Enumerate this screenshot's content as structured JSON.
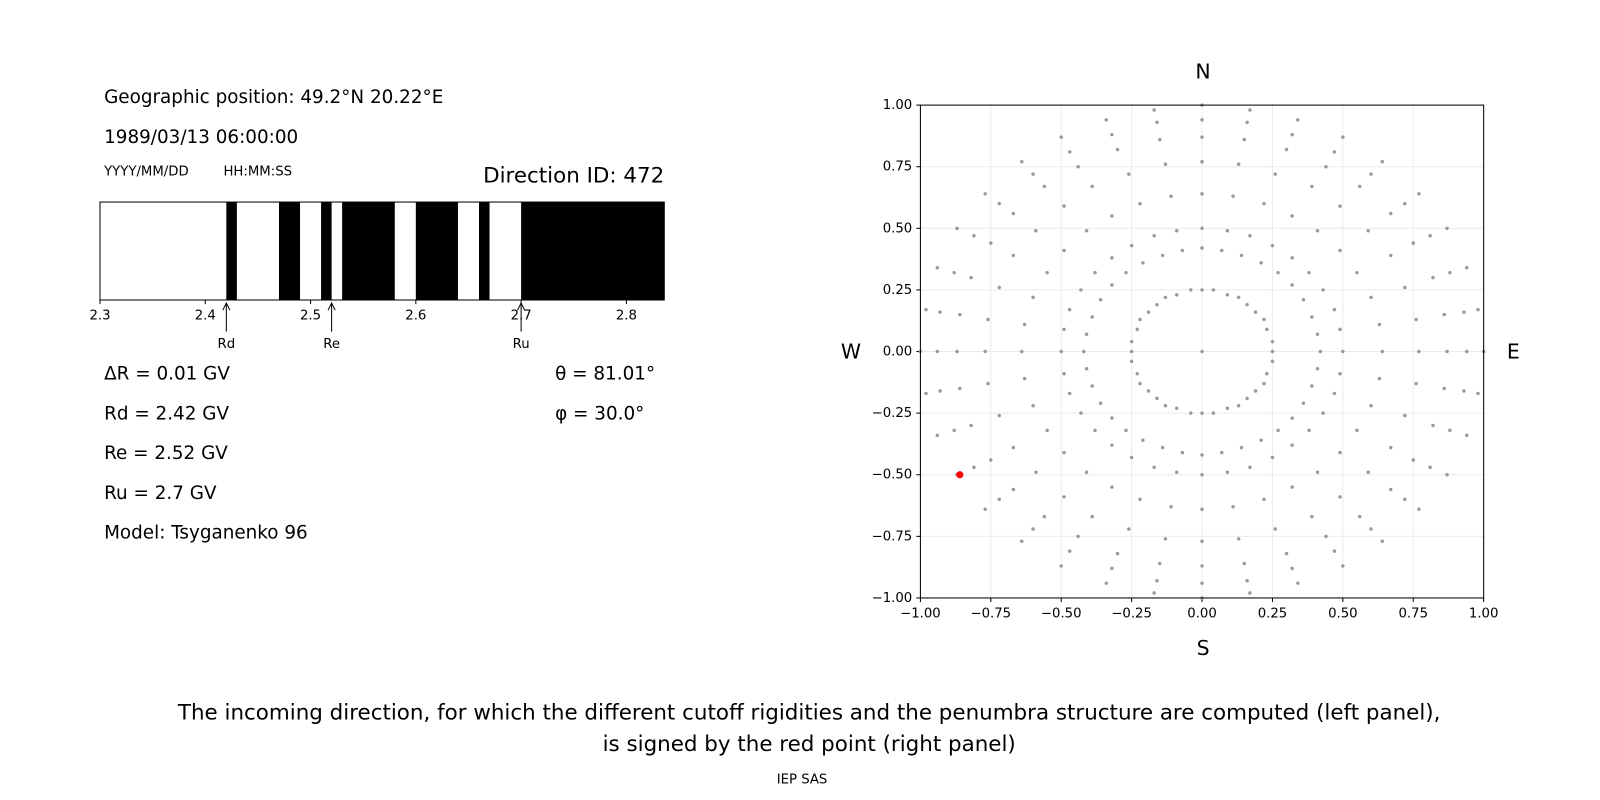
{
  "info": {
    "position": "Geographic position: 49.2°N 20.22°E",
    "datetime": "1989/03/13 06:00:00",
    "date_format": "YYYY/MM/DD",
    "time_format": "HH:MM:SS",
    "direction": "Direction ID: 472",
    "delta_r": "ΔR = 0.01 GV",
    "rd": "Rd = 2.42 GV",
    "re": "Re = 2.52 GV",
    "ru": "Ru = 2.7 GV",
    "model": "Model: Tsyganenko 96",
    "theta": "θ = 81.01°",
    "phi": "φ = 30.0°"
  },
  "chart_data": [
    {
      "type": "penumbra",
      "xlim": [
        2.3,
        2.836
      ],
      "xticks": [
        2.3,
        2.4,
        2.5,
        2.6,
        2.7,
        2.8
      ],
      "color": "#000000",
      "forbidden": [
        [
          2.42,
          2.43
        ],
        [
          2.47,
          2.49
        ],
        [
          2.51,
          2.52
        ],
        [
          2.53,
          2.58
        ],
        [
          2.6,
          2.64
        ],
        [
          2.66,
          2.67
        ],
        [
          2.7,
          2.836
        ]
      ],
      "markers": [
        {
          "label": "Rd",
          "value": 2.42
        },
        {
          "label": "Re",
          "value": 2.52
        },
        {
          "label": "Ru",
          "value": 2.7
        }
      ]
    },
    {
      "type": "scatter",
      "grid": true,
      "compass": {
        "north": "N",
        "south": "S",
        "west": "W",
        "east": "E"
      },
      "xlim": [
        -1,
        1
      ],
      "ylim": [
        -1,
        1
      ],
      "xticks": [
        {
          "value": -1,
          "label": "−1.00"
        },
        {
          "value": -0.75,
          "label": "−0.75"
        },
        {
          "value": -0.5,
          "label": "−0.50"
        },
        {
          "value": -0.25,
          "label": "−0.25"
        },
        {
          "value": 0,
          "label": "0.00"
        },
        {
          "value": 0.25,
          "label": "0.25"
        },
        {
          "value": 0.5,
          "label": "0.50"
        },
        {
          "value": 0.75,
          "label": "0.75"
        },
        {
          "value": 1,
          "label": "1.00"
        }
      ],
      "yticks": [
        {
          "value": -1,
          "label": "−1.00"
        },
        {
          "value": -0.75,
          "label": "−0.75"
        },
        {
          "value": -0.5,
          "label": "−0.50"
        },
        {
          "value": -0.25,
          "label": "−0.25"
        },
        {
          "value": 0,
          "label": "0.00"
        },
        {
          "value": 0.25,
          "label": "0.25"
        },
        {
          "value": 0.5,
          "label": "0.50"
        },
        {
          "value": 0.75,
          "label": "0.75"
        },
        {
          "value": 1,
          "label": "1.00"
        }
      ],
      "series": [
        {
          "color": "#999999",
          "x": [
            0
          ],
          "y": [
            0
          ]
        },
        {
          "color": "#999999",
          "x": [
            0.25,
            0.25,
            0.23,
            0.22,
            0.19,
            0.16,
            0.13,
            0.09,
            0.04,
            0,
            -0.04,
            -0.09,
            -0.13,
            -0.16,
            -0.19,
            -0.22,
            -0.23,
            -0.25,
            -0.25,
            -0.25,
            -0.23,
            -0.22,
            -0.19,
            -0.16,
            -0.13,
            -0.09,
            -0.04,
            0,
            0.04,
            0.09,
            0.13,
            0.16,
            0.19,
            0.22,
            0.23,
            0.25
          ],
          "y": [
            0,
            0.04,
            0.09,
            0.13,
            0.16,
            0.19,
            0.22,
            0.23,
            0.25,
            0.25,
            0.25,
            0.23,
            0.22,
            0.19,
            0.16,
            0.13,
            0.09,
            0.04,
            0,
            -0.04,
            -0.09,
            -0.13,
            -0.16,
            -0.19,
            -0.22,
            -0.23,
            -0.25,
            -0.25,
            -0.25,
            -0.23,
            -0.22,
            -0.19,
            -0.16,
            -0.13,
            -0.09,
            -0.04
          ]
        },
        {
          "color": "#999999",
          "x": [
            0.42,
            0.41,
            0.39,
            0.36,
            0.32,
            0.27,
            0.21,
            0.14,
            0.07,
            0,
            -0.07,
            -0.14,
            -0.21,
            -0.27,
            -0.32,
            -0.36,
            -0.39,
            -0.41,
            -0.42,
            -0.41,
            -0.39,
            -0.36,
            -0.32,
            -0.27,
            -0.21,
            -0.14,
            -0.07,
            0,
            0.07,
            0.14,
            0.21,
            0.27,
            0.32,
            0.36,
            0.39,
            0.41
          ],
          "y": [
            0,
            0.07,
            0.14,
            0.21,
            0.27,
            0.32,
            0.36,
            0.39,
            0.41,
            0.42,
            0.41,
            0.39,
            0.36,
            0.32,
            0.27,
            0.21,
            0.14,
            0.07,
            0,
            -0.07,
            -0.14,
            -0.21,
            -0.27,
            -0.32,
            -0.36,
            -0.39,
            -0.41,
            -0.42,
            -0.41,
            -0.39,
            -0.36,
            -0.32,
            -0.27,
            -0.21,
            -0.14,
            -0.07
          ]
        },
        {
          "color": "#999999",
          "x": [
            0.5,
            0.49,
            0.47,
            0.43,
            0.38,
            0.32,
            0.25,
            0.17,
            0.09,
            0,
            -0.09,
            -0.17,
            -0.25,
            -0.32,
            -0.38,
            -0.43,
            -0.47,
            -0.49,
            -0.5,
            -0.49,
            -0.47,
            -0.43,
            -0.38,
            -0.32,
            -0.25,
            -0.17,
            -0.09,
            0,
            0.09,
            0.17,
            0.25,
            0.32,
            0.38,
            0.43,
            0.47,
            0.49
          ],
          "y": [
            0,
            0.09,
            0.17,
            0.25,
            0.32,
            0.38,
            0.43,
            0.47,
            0.49,
            0.5,
            0.49,
            0.47,
            0.43,
            0.38,
            0.32,
            0.25,
            0.17,
            0.09,
            0,
            -0.09,
            -0.17,
            -0.25,
            -0.32,
            -0.38,
            -0.43,
            -0.47,
            -0.49,
            -0.5,
            -0.49,
            -0.47,
            -0.43,
            -0.38,
            -0.32,
            -0.25,
            -0.17,
            -0.09
          ]
        },
        {
          "color": "#999999",
          "x": [
            0.64,
            0.63,
            0.6,
            0.55,
            0.49,
            0.41,
            0.32,
            0.22,
            0.11,
            0,
            -0.11,
            -0.22,
            -0.32,
            -0.41,
            -0.49,
            -0.55,
            -0.6,
            -0.63,
            -0.64,
            -0.63,
            -0.6,
            -0.55,
            -0.49,
            -0.41,
            -0.32,
            -0.22,
            -0.11,
            0,
            0.11,
            0.22,
            0.32,
            0.41,
            0.49,
            0.55,
            0.6,
            0.63
          ],
          "y": [
            0,
            0.11,
            0.22,
            0.32,
            0.41,
            0.49,
            0.55,
            0.6,
            0.63,
            0.64,
            0.63,
            0.6,
            0.55,
            0.49,
            0.41,
            0.32,
            0.22,
            0.11,
            0,
            -0.11,
            -0.22,
            -0.32,
            -0.41,
            -0.49,
            -0.55,
            -0.6,
            -0.63,
            -0.64,
            -0.63,
            -0.6,
            -0.55,
            -0.49,
            -0.41,
            -0.32,
            -0.22,
            -0.11
          ]
        },
        {
          "color": "#999999",
          "x": [
            0.77,
            0.76,
            0.72,
            0.67,
            0.59,
            0.49,
            0.39,
            0.26,
            0.13,
            0,
            -0.13,
            -0.26,
            -0.39,
            -0.49,
            -0.59,
            -0.67,
            -0.72,
            -0.76,
            -0.77,
            -0.76,
            -0.72,
            -0.67,
            -0.59,
            -0.49,
            -0.39,
            -0.26,
            -0.13,
            0,
            0.13,
            0.26,
            0.39,
            0.49,
            0.59,
            0.67,
            0.72,
            0.76
          ],
          "y": [
            0,
            0.13,
            0.26,
            0.39,
            0.49,
            0.59,
            0.67,
            0.72,
            0.76,
            0.77,
            0.76,
            0.72,
            0.67,
            0.59,
            0.49,
            0.39,
            0.26,
            0.13,
            0,
            -0.13,
            -0.26,
            -0.39,
            -0.49,
            -0.59,
            -0.67,
            -0.72,
            -0.76,
            -0.77,
            -0.76,
            -0.72,
            -0.67,
            -0.59,
            -0.49,
            -0.39,
            -0.26,
            -0.13
          ]
        },
        {
          "color": "#999999",
          "x": [
            0.87,
            0.86,
            0.82,
            0.75,
            0.67,
            0.56,
            0.44,
            0.3,
            0.15,
            0,
            -0.15,
            -0.3,
            -0.44,
            -0.56,
            -0.67,
            -0.75,
            -0.82,
            -0.86,
            -0.87,
            -0.86,
            -0.82,
            -0.75,
            -0.67,
            -0.56,
            -0.44,
            -0.3,
            -0.15,
            0,
            0.15,
            0.3,
            0.44,
            0.56,
            0.67,
            0.75,
            0.82,
            0.86
          ],
          "y": [
            0,
            0.15,
            0.3,
            0.44,
            0.56,
            0.67,
            0.75,
            0.82,
            0.86,
            0.87,
            0.86,
            0.82,
            0.75,
            0.67,
            0.56,
            0.44,
            0.3,
            0.15,
            0,
            -0.15,
            -0.3,
            -0.44,
            -0.56,
            -0.67,
            -0.75,
            -0.82,
            -0.86,
            -0.87,
            -0.86,
            -0.82,
            -0.75,
            -0.67,
            -0.56,
            -0.44,
            -0.3,
            -0.15
          ]
        },
        {
          "color": "#999999",
          "x": [
            0.94,
            0.93,
            0.88,
            0.81,
            0.72,
            0.6,
            0.47,
            0.32,
            0.16,
            0,
            -0.16,
            -0.32,
            -0.47,
            -0.6,
            -0.72,
            -0.81,
            -0.88,
            -0.93,
            -0.94,
            -0.93,
            -0.88,
            -0.81,
            -0.72,
            -0.6,
            -0.47,
            -0.32,
            -0.16,
            0,
            0.16,
            0.32,
            0.47,
            0.6,
            0.72,
            0.81,
            0.88,
            0.93
          ],
          "y": [
            0,
            0.16,
            0.32,
            0.47,
            0.6,
            0.72,
            0.81,
            0.88,
            0.93,
            0.94,
            0.93,
            0.88,
            0.81,
            0.72,
            0.6,
            0.47,
            0.32,
            0.16,
            0,
            -0.16,
            -0.32,
            -0.47,
            -0.6,
            -0.72,
            -0.81,
            -0.88,
            -0.93,
            -0.94,
            -0.93,
            -0.88,
            -0.81,
            -0.72,
            -0.6,
            -0.47,
            -0.32,
            -0.16
          ]
        },
        {
          "color": "#999999",
          "x": [
            1,
            0.98,
            0.94,
            0.87,
            0.77,
            0.64,
            0.5,
            0.34,
            0.17,
            0,
            -0.17,
            -0.34,
            -0.5,
            -0.64,
            -0.77,
            -0.87,
            -0.94,
            -0.98,
            -1,
            -0.98,
            -0.94,
            -0.87,
            -0.77,
            -0.64,
            -0.5,
            -0.34,
            -0.17,
            0,
            0.17,
            0.34,
            0.5,
            0.64,
            0.77,
            0.87,
            0.94,
            0.98
          ],
          "y": [
            0,
            0.17,
            0.34,
            0.5,
            0.64,
            0.77,
            0.87,
            0.94,
            0.98,
            1,
            0.98,
            0.94,
            0.87,
            0.77,
            0.64,
            0.5,
            0.34,
            0.17,
            0,
            -0.17,
            -0.34,
            -0.5,
            -0.64,
            -0.77,
            -0.87,
            -0.94,
            -0.98,
            -1,
            -0.98,
            -0.94,
            -0.87,
            -0.77,
            -0.64,
            -0.5,
            -0.34,
            -0.17
          ]
        },
        {
          "color": "#ff0000",
          "x": [
            -0.86
          ],
          "y": [
            -0.5
          ]
        }
      ]
    }
  ],
  "caption": [
    "The incoming direction, for which the different cutoff rigidities and the penumbra structure are computed (left panel),",
    "is signed by the red point (right panel)"
  ],
  "credit": "IEP SAS"
}
